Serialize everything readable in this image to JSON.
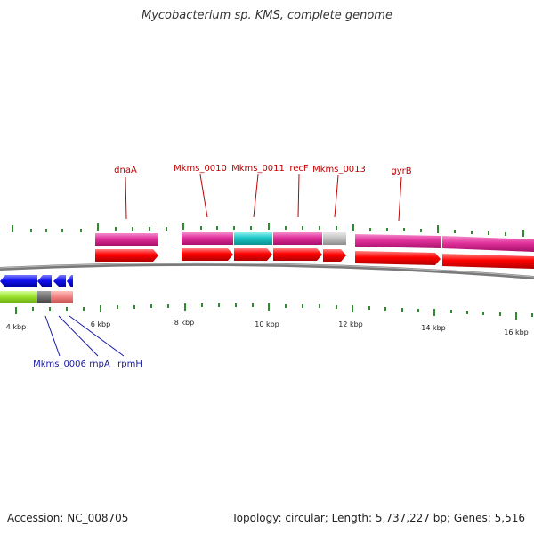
{
  "title": "Mycobacterium sp. KMS, complete genome",
  "accession": "Accession: NC_008705",
  "summary": "Topology: circular; Length: 5,737,227 bp; Genes: 5,516",
  "scale_labels": [
    "4 kbp",
    "6 kbp",
    "8 kbp",
    "10 kbp",
    "12 kbp",
    "14 kbp",
    "16 kbp"
  ],
  "forward_gene_labels": [
    "dnaA",
    "Mkms_0010",
    "Mkms_0011",
    "recF",
    "Mkms_0013",
    "gyrB"
  ],
  "reverse_gene_labels": [
    "Mkms_0006",
    "rnpA",
    "rpmH"
  ],
  "colors": {
    "cds_feature": "#e0309a",
    "cds_teal": "#1cc6c6",
    "cds_gray": "#c0c0c0",
    "gene_arrow": "#ff0000",
    "reverse_gene": "#1010ee",
    "reverse_cds": "#9de32c",
    "backbone": "#7a7a7a",
    "tick": "#2e8b2e",
    "forward_label": "#c00000",
    "reverse_label": "#1a1aa6"
  }
}
